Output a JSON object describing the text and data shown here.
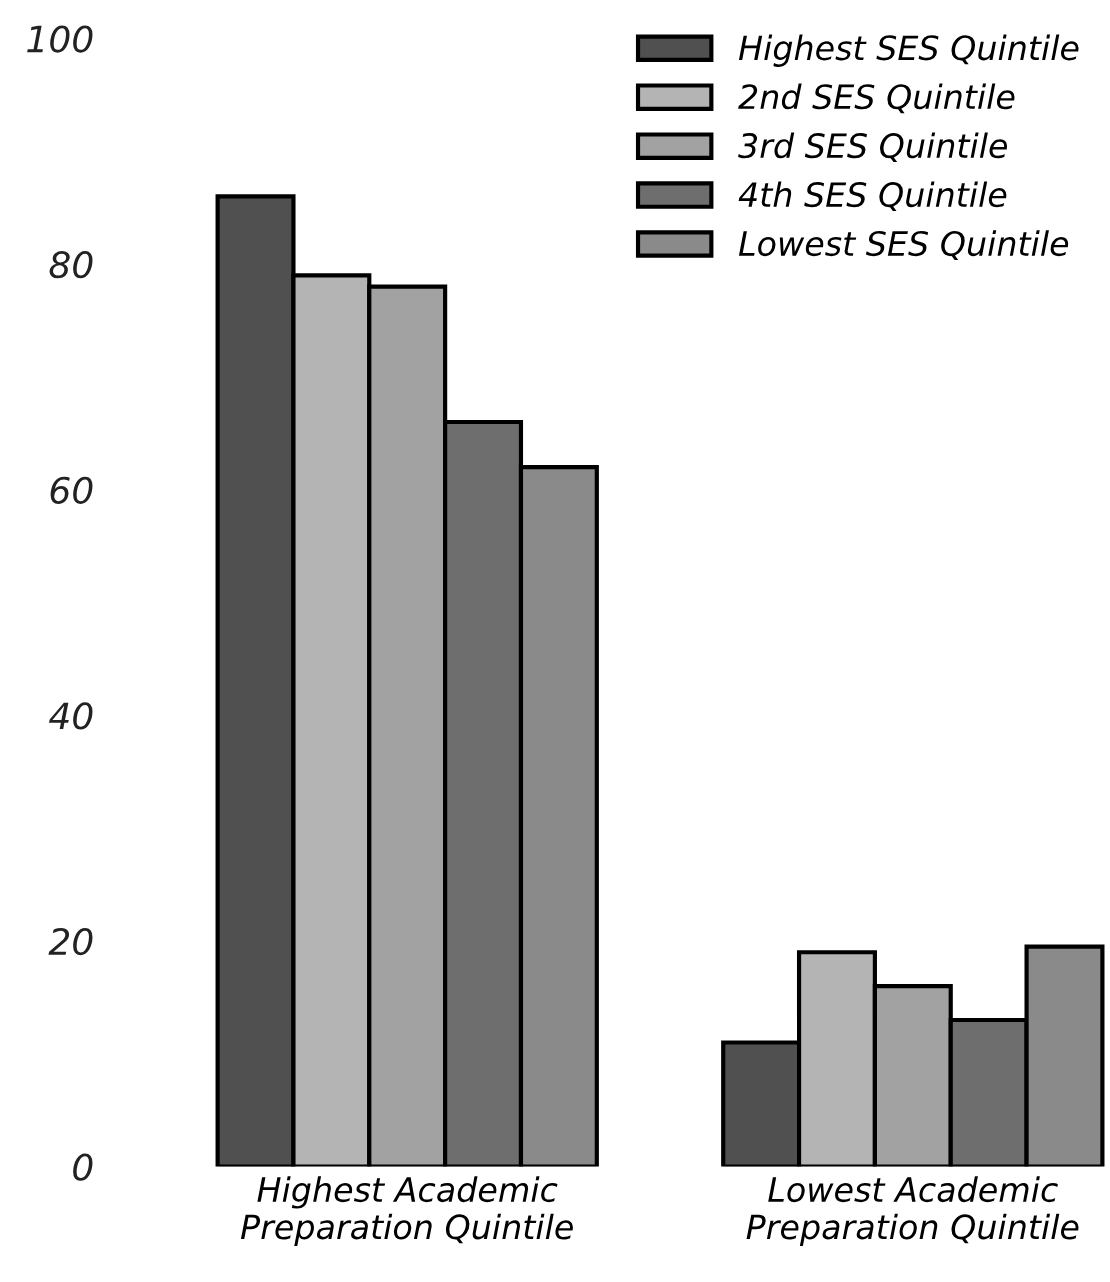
{
  "chart_data": {
    "type": "bar",
    "categories": [
      "Highest Academic\nPreparation Quintile",
      "Lowest Academic\nPreparation Quintile"
    ],
    "series": [
      {
        "name": "Highest SES Quintile",
        "color": "#505050",
        "values": [
          86,
          11
        ]
      },
      {
        "name": "2nd SES Quintile",
        "color": "#b4b4b4",
        "values": [
          79,
          19
        ]
      },
      {
        "name": "3rd SES Quintile",
        "color": "#a2a2a2",
        "values": [
          78,
          16
        ]
      },
      {
        "name": "4th SES Quintile",
        "color": "#6e6e6e",
        "values": [
          66,
          13
        ]
      },
      {
        "name": "Lowest SES Quintile",
        "color": "#8a8a8a",
        "values": [
          62,
          19.5
        ]
      }
    ],
    "ylim": [
      0,
      100
    ],
    "yticks": [
      0,
      20,
      40,
      60,
      80,
      100
    ],
    "grid": false,
    "legend": "top right"
  }
}
